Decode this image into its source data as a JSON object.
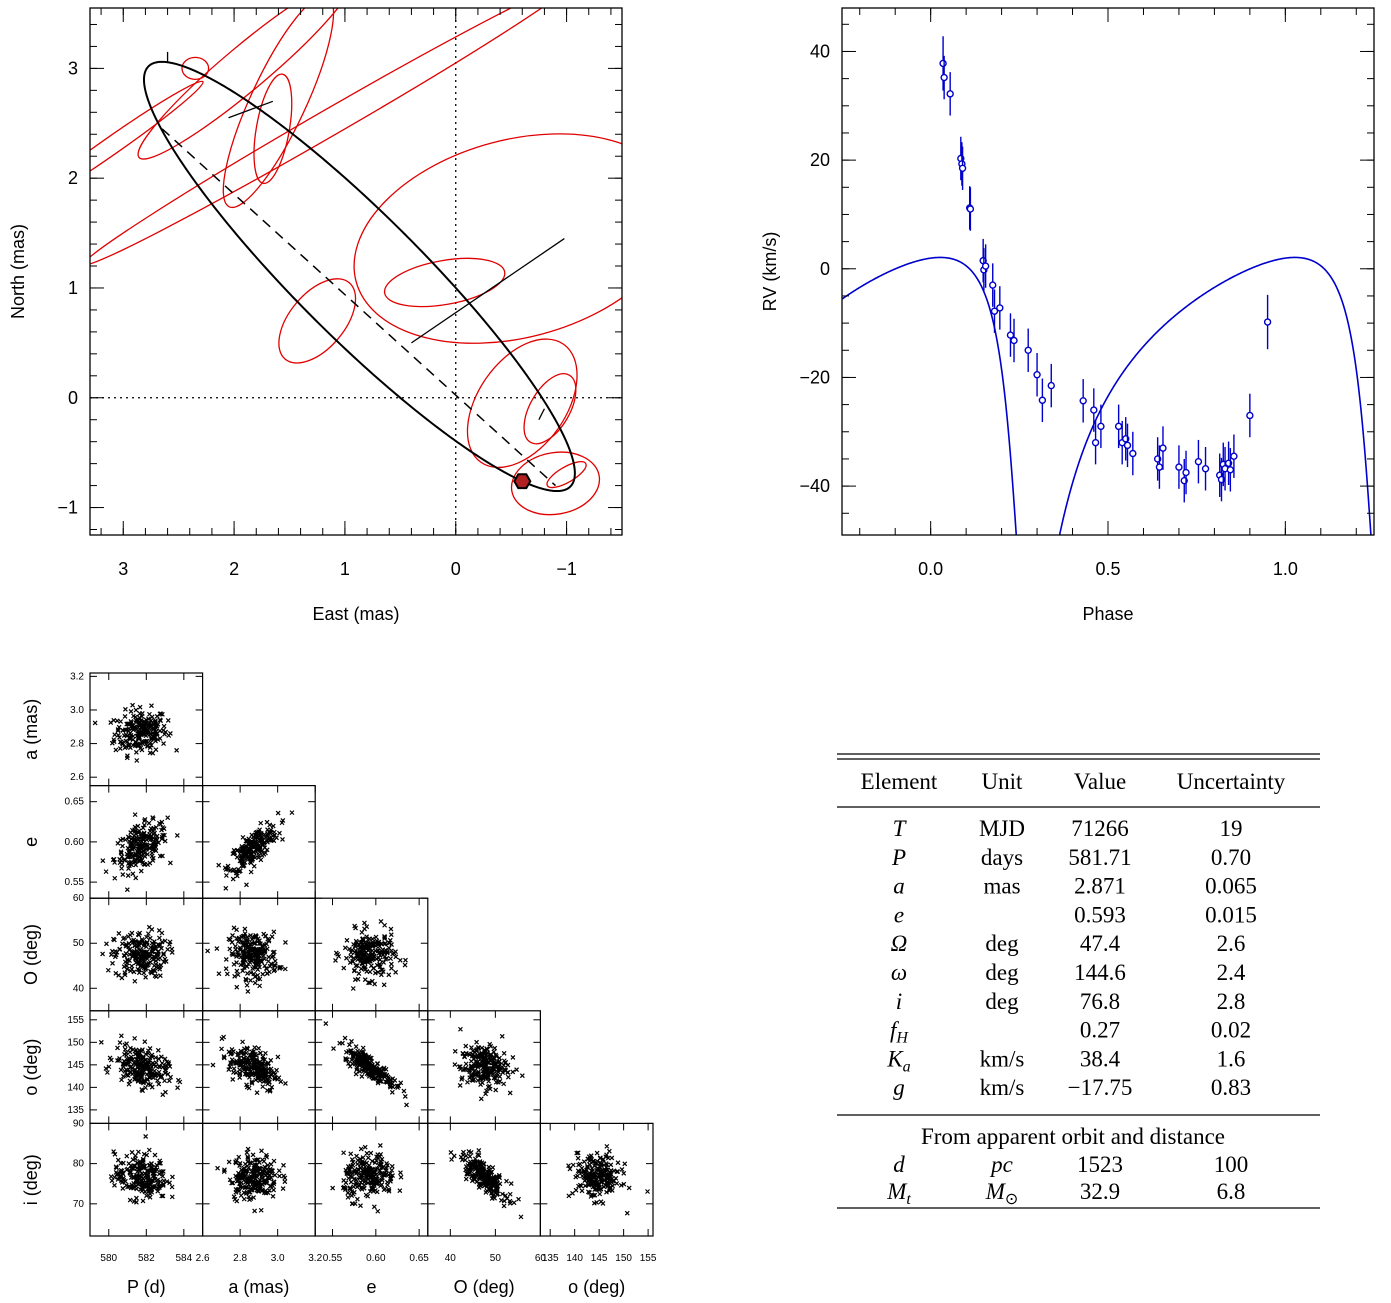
{
  "chart_data": [
    {
      "type": "scatter",
      "subtype": "astrometric-orbit",
      "xlabel": "East (mas)",
      "ylabel": "North (mas)",
      "xlim": [
        3.3,
        -1.5
      ],
      "ylim": [
        -1.25,
        3.55
      ],
      "x_reversed": true,
      "xticks": [
        3,
        2,
        1,
        0,
        -1
      ],
      "yticks": [
        -1,
        0,
        1,
        2,
        3
      ],
      "xtick_labels": [
        "3",
        "2",
        "1",
        "0",
        "−1"
      ],
      "ytick_labels": [
        "−1",
        "0",
        "1",
        "2",
        "3"
      ],
      "origin_dotted_lines": true,
      "orbit_color": "#000000",
      "error_ellipse_color": "#e00000",
      "orbit": {
        "semi_major_mas": 2.871,
        "eccentricity": 0.593,
        "Omega_deg": 47.4,
        "omega_deg": 144.6,
        "inclination_deg": 76.8
      },
      "line_of_nodes": [
        [
          2.65,
          2.45
        ],
        [
          -0.9,
          -0.8
        ]
      ],
      "current_position": {
        "east": -0.6,
        "north": -0.76,
        "color": "#000000",
        "fill": "#b02020"
      },
      "error_ellipses": [
        {
          "east": 2.35,
          "north": 3.0,
          "a": 0.12,
          "b": 0.1,
          "angle": 0
        },
        {
          "east": 1.9,
          "north": 3.0,
          "a": 1.25,
          "b": 0.2,
          "angle": 40
        },
        {
          "east": 1.6,
          "north": 2.7,
          "a": 1.05,
          "b": 0.25,
          "angle": 65
        },
        {
          "east": 1.65,
          "north": 2.45,
          "a": 0.5,
          "b": 0.15,
          "angle": 80
        },
        {
          "east": 1.15,
          "north": 2.5,
          "a": 2.55,
          "b": 0.12,
          "angle": 30
        },
        {
          "east": 3.1,
          "north": 2.3,
          "a": 1.0,
          "b": 0.08,
          "angle": 35
        },
        {
          "east": 1.25,
          "north": 0.7,
          "a": 0.45,
          "b": 0.25,
          "angle": 50
        },
        {
          "east": -0.55,
          "north": 1.45,
          "a": 1.5,
          "b": 0.9,
          "angle": 15
        },
        {
          "east": 0.1,
          "north": 1.05,
          "a": 0.55,
          "b": 0.2,
          "angle": 10
        },
        {
          "east": -0.6,
          "north": -0.05,
          "a": 0.65,
          "b": 0.4,
          "angle": 55
        },
        {
          "east": -0.85,
          "north": -0.1,
          "a": 0.35,
          "b": 0.18,
          "angle": 60
        },
        {
          "east": -0.9,
          "north": -0.78,
          "a": 0.4,
          "b": 0.28,
          "angle": 10
        },
        {
          "east": -1.0,
          "north": -0.7,
          "a": 0.2,
          "b": 0.07,
          "angle": 30
        }
      ],
      "o_c_lines": [
        {
          "from": [
            1.65,
            2.7
          ],
          "to": [
            2.05,
            2.55
          ]
        },
        {
          "from": [
            0.4,
            0.5
          ],
          "to": [
            -0.98,
            1.45
          ]
        },
        {
          "from": [
            -0.75,
            -0.2
          ],
          "to": [
            -0.8,
            -0.1
          ]
        },
        {
          "from": [
            2.6,
            3.05
          ],
          "to": [
            2.6,
            3.15
          ]
        }
      ]
    },
    {
      "type": "line",
      "subtype": "radial-velocity-curve",
      "xlabel": "Phase",
      "ylabel": "RV (km/s)",
      "xlim": [
        -0.25,
        1.25
      ],
      "ylim": [
        -49,
        48
      ],
      "xticks": [
        0.0,
        0.5,
        1.0
      ],
      "yticks": [
        -40,
        -20,
        0,
        20,
        40
      ],
      "xtick_labels": [
        "0.0",
        "0.5",
        "1.0"
      ],
      "ytick_labels": [
        "−40",
        "−20",
        "0",
        "20",
        "40"
      ],
      "color": "#0000cc",
      "model": {
        "K": 38.4,
        "e": 0.593,
        "omega_deg": 144.6,
        "gamma": -17.75
      },
      "points": [
        {
          "phase": 0.035,
          "rv": 37.8,
          "err": 5.0
        },
        {
          "phase": 0.038,
          "rv": 35.2,
          "err": 4.0
        },
        {
          "phase": 0.055,
          "rv": 32.2,
          "err": 4.0
        },
        {
          "phase": 0.085,
          "rv": 20.3,
          "err": 4.0
        },
        {
          "phase": 0.088,
          "rv": 19.3,
          "err": 4.0
        },
        {
          "phase": 0.09,
          "rv": 18.5,
          "err": 4.0
        },
        {
          "phase": 0.11,
          "rv": 11.2,
          "err": 4.0
        },
        {
          "phase": 0.112,
          "rv": 11.0,
          "err": 4.0
        },
        {
          "phase": 0.148,
          "rv": 1.5,
          "err": 4.0
        },
        {
          "phase": 0.15,
          "rv": -0.2,
          "err": 4.0
        },
        {
          "phase": 0.155,
          "rv": 0.5,
          "err": 4.0
        },
        {
          "phase": 0.175,
          "rv": -3.0,
          "err": 4.0
        },
        {
          "phase": 0.18,
          "rv": -7.8,
          "err": 4.0
        },
        {
          "phase": 0.195,
          "rv": -7.2,
          "err": 4.0
        },
        {
          "phase": 0.225,
          "rv": -12.2,
          "err": 4.0
        },
        {
          "phase": 0.235,
          "rv": -13.2,
          "err": 4.0
        },
        {
          "phase": 0.275,
          "rv": -15.0,
          "err": 4.0
        },
        {
          "phase": 0.3,
          "rv": -19.5,
          "err": 4.0
        },
        {
          "phase": 0.315,
          "rv": -24.2,
          "err": 4.0
        },
        {
          "phase": 0.34,
          "rv": -21.5,
          "err": 4.0
        },
        {
          "phase": 0.43,
          "rv": -24.3,
          "err": 4.0
        },
        {
          "phase": 0.46,
          "rv": -26.0,
          "err": 4.0
        },
        {
          "phase": 0.465,
          "rv": -32.0,
          "err": 4.0
        },
        {
          "phase": 0.48,
          "rv": -29.0,
          "err": 4.0
        },
        {
          "phase": 0.53,
          "rv": -29.0,
          "err": 4.0
        },
        {
          "phase": 0.54,
          "rv": -32.0,
          "err": 4.0
        },
        {
          "phase": 0.55,
          "rv": -31.3,
          "err": 4.0
        },
        {
          "phase": 0.555,
          "rv": -32.5,
          "err": 4.0
        },
        {
          "phase": 0.57,
          "rv": -34.0,
          "err": 4.0
        },
        {
          "phase": 0.64,
          "rv": -35.0,
          "err": 4.0
        },
        {
          "phase": 0.645,
          "rv": -36.5,
          "err": 4.0
        },
        {
          "phase": 0.655,
          "rv": -33.0,
          "err": 4.0
        },
        {
          "phase": 0.7,
          "rv": -36.5,
          "err": 4.0
        },
        {
          "phase": 0.715,
          "rv": -39.0,
          "err": 4.0
        },
        {
          "phase": 0.72,
          "rv": -37.5,
          "err": 4.0
        },
        {
          "phase": 0.755,
          "rv": -35.5,
          "err": 4.0
        },
        {
          "phase": 0.775,
          "rv": -36.8,
          "err": 4.0
        },
        {
          "phase": 0.815,
          "rv": -38.0,
          "err": 4.0
        },
        {
          "phase": 0.82,
          "rv": -38.8,
          "err": 4.0
        },
        {
          "phase": 0.825,
          "rv": -36.0,
          "err": 4.0
        },
        {
          "phase": 0.83,
          "rv": -36.8,
          "err": 4.0
        },
        {
          "phase": 0.84,
          "rv": -35.8,
          "err": 4.0
        },
        {
          "phase": 0.845,
          "rv": -37.0,
          "err": 4.0
        },
        {
          "phase": 0.855,
          "rv": -34.5,
          "err": 4.0
        },
        {
          "phase": 0.9,
          "rv": -27.0,
          "err": 4.0
        },
        {
          "phase": 0.95,
          "rv": -9.8,
          "err": 5.0
        }
      ]
    },
    {
      "type": "scatter",
      "subtype": "corner-plot",
      "marker": "x",
      "samples_shown": 220,
      "columns": [
        {
          "label": "P (d)",
          "mean": 581.71,
          "sd": 0.7,
          "range": [
            579,
            585
          ],
          "ticks": [
            580,
            582,
            584
          ],
          "tick_labels": [
            "580",
            "582",
            "584"
          ]
        },
        {
          "label": "a (mas)",
          "mean": 2.871,
          "sd": 0.065,
          "range": [
            2.6,
            3.2
          ],
          "ticks": [
            2.6,
            2.8,
            3.0,
            3.2
          ],
          "tick_labels": [
            "2.6",
            "2.8",
            "3.0",
            "3.2"
          ]
        },
        {
          "label": "e",
          "mean": 0.593,
          "sd": 0.015,
          "range": [
            0.53,
            0.66
          ],
          "ticks": [
            0.55,
            0.6,
            0.65
          ],
          "tick_labels": [
            "0.55",
            "0.60",
            "0.65"
          ]
        },
        {
          "label": "O (deg)",
          "mean": 47.4,
          "sd": 2.6,
          "range": [
            35,
            60
          ],
          "ticks": [
            40,
            50,
            60
          ],
          "tick_labels": [
            "40",
            "50",
            "60"
          ]
        },
        {
          "label": "o (deg)",
          "mean": 144.6,
          "sd": 2.4,
          "range": [
            133,
            156
          ],
          "ticks": [
            135,
            140,
            145,
            150,
            155
          ],
          "tick_labels": [
            "135",
            "140",
            "145",
            "150",
            "155"
          ]
        }
      ],
      "rows": [
        {
          "label": "a (mas)",
          "mean": 2.871,
          "sd": 0.065,
          "range": [
            2.55,
            3.22
          ],
          "ticks": [
            2.6,
            2.8,
            3.0,
            3.2
          ],
          "tick_labels": [
            "2.6",
            "2.8",
            "3.0",
            "3.2"
          ]
        },
        {
          "label": "e",
          "mean": 0.593,
          "sd": 0.015,
          "range": [
            0.53,
            0.67
          ],
          "ticks": [
            0.55,
            0.6,
            0.65
          ],
          "tick_labels": [
            "0.55",
            "0.60",
            "0.65"
          ]
        },
        {
          "label": "O (deg)",
          "mean": 47.4,
          "sd": 2.6,
          "range": [
            35,
            60
          ],
          "ticks": [
            40,
            50,
            60
          ],
          "tick_labels": [
            "40",
            "50",
            "60"
          ]
        },
        {
          "label": "o (deg)",
          "mean": 144.6,
          "sd": 2.4,
          "range": [
            132,
            157
          ],
          "ticks": [
            135,
            140,
            145,
            150,
            155
          ],
          "tick_labels": [
            "135",
            "140",
            "145",
            "150",
            "155"
          ]
        },
        {
          "label": "i (deg)",
          "mean": 76.8,
          "sd": 2.8,
          "range": [
            62,
            90
          ],
          "ticks": [
            70,
            80,
            90
          ],
          "tick_labels": [
            "70",
            "80",
            "90"
          ]
        }
      ],
      "correlations": [
        [
          0.1
        ],
        [
          0.45,
          0.75
        ],
        [
          0.05,
          -0.05,
          -0.05
        ],
        [
          -0.35,
          -0.45,
          -0.85,
          0.05
        ],
        [
          -0.05,
          0.05,
          0.05,
          -0.8,
          -0.1
        ]
      ]
    },
    {
      "type": "table",
      "headers": [
        "Element",
        "Unit",
        "Value",
        "Uncertainty"
      ],
      "rows": [
        {
          "element": "T",
          "sub": "",
          "unit": "MJD",
          "value": "71266",
          "uncertainty": "19"
        },
        {
          "element": "P",
          "sub": "",
          "unit": "days",
          "value": "581.71",
          "uncertainty": "0.70"
        },
        {
          "element": "a",
          "sub": "",
          "unit": "mas",
          "value": "2.871",
          "uncertainty": "0.065"
        },
        {
          "element": "e",
          "sub": "",
          "unit": "",
          "value": "0.593",
          "uncertainty": "0.015"
        },
        {
          "element": "Ω",
          "sub": "",
          "unit": "deg",
          "value": "47.4",
          "uncertainty": "2.6"
        },
        {
          "element": "ω",
          "sub": "",
          "unit": "deg",
          "value": "144.6",
          "uncertainty": "2.4"
        },
        {
          "element": "i",
          "sub": "",
          "unit": "deg",
          "value": "76.8",
          "uncertainty": "2.8"
        },
        {
          "element": "f",
          "sub": "H",
          "unit": "",
          "value": "0.27",
          "uncertainty": "0.02"
        },
        {
          "element": "K",
          "sub": "a",
          "unit": "km/s",
          "value": "38.4",
          "uncertainty": "1.6"
        },
        {
          "element": "g",
          "sub": "",
          "unit": "km/s",
          "value": "−17.75",
          "uncertainty": "0.83"
        }
      ],
      "section_title": "From apparent orbit and distance",
      "section_rows": [
        {
          "element": "d",
          "sub": "",
          "unit": "pc",
          "unit_sub": "",
          "value": "1523",
          "uncertainty": "100"
        },
        {
          "element": "M",
          "sub": "t",
          "unit": "M",
          "unit_sub": "⊙",
          "value": "32.9",
          "uncertainty": "6.8"
        }
      ]
    }
  ]
}
